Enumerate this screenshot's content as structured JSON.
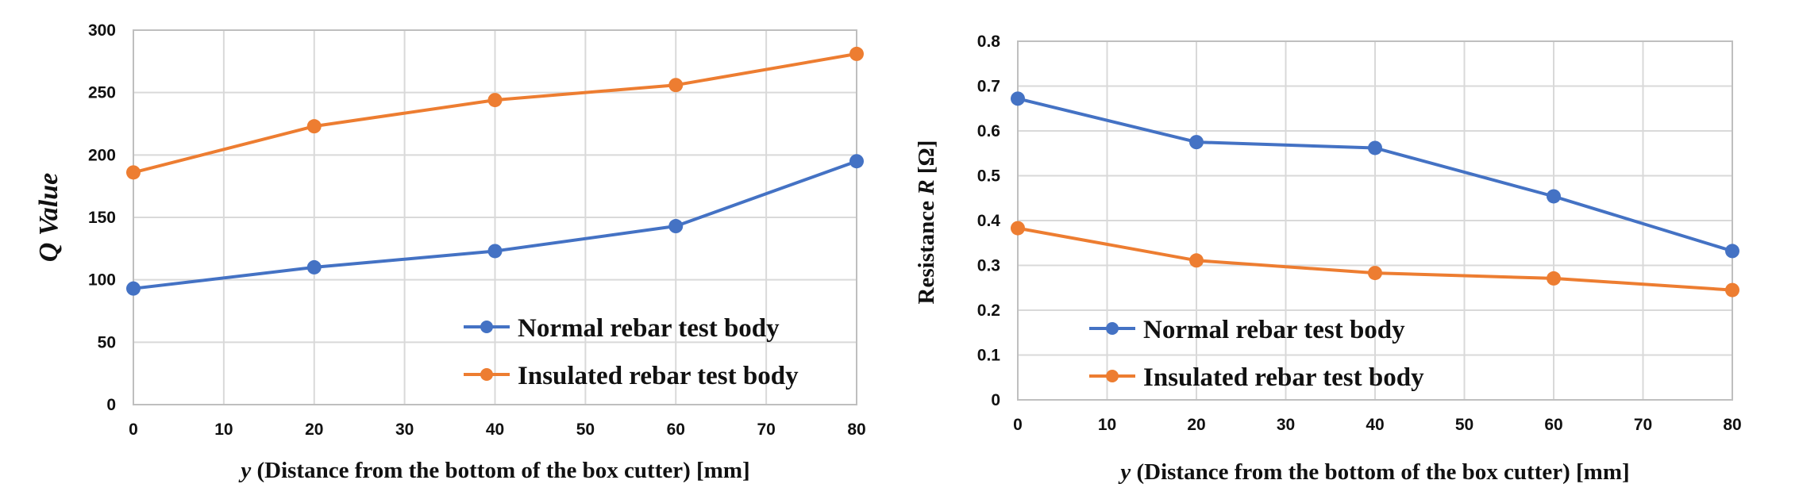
{
  "colors": {
    "normal": "#4472c4",
    "insulated": "#ed7d31"
  },
  "chart_data": [
    {
      "type": "line",
      "x": [
        0,
        20,
        40,
        60,
        80
      ],
      "xticks": [
        0,
        10,
        20,
        30,
        40,
        50,
        60,
        70,
        80
      ],
      "xlim": [
        0,
        80
      ],
      "yticks": [
        0,
        50,
        100,
        150,
        200,
        250,
        300
      ],
      "ylim": [
        0,
        300
      ],
      "xlabel": {
        "var": "y",
        "rest": " (Distance from the bottom of the box cutter) [mm]"
      },
      "ylabel": "Q Value",
      "grid": true,
      "legend_position": "bottom-right",
      "series": [
        {
          "name": "Normal rebar test body",
          "color": "#4472c4",
          "values": [
            93,
            110,
            123,
            143,
            195
          ]
        },
        {
          "name": "Insulated rebar test body",
          "color": "#ed7d31",
          "values": [
            186,
            223,
            244,
            256,
            281
          ]
        }
      ]
    },
    {
      "type": "line",
      "x": [
        0,
        20,
        40,
        60,
        80
      ],
      "xticks": [
        0,
        10,
        20,
        30,
        40,
        50,
        60,
        70,
        80
      ],
      "xlim": [
        0,
        80
      ],
      "yticks": [
        "0",
        "0.1",
        "0.2",
        "0.3",
        "0.4",
        "0.5",
        "0.6",
        "0.7",
        "0.8"
      ],
      "ylim": [
        0,
        0.8
      ],
      "xlabel": {
        "var": "y",
        "rest": " (Distance from the bottom of the box cutter) [mm]"
      },
      "ylabel": {
        "pre": "Resistance ",
        "var": "R",
        "post": " [Ω]"
      },
      "grid": true,
      "legend_position": "bottom-left",
      "series": [
        {
          "name": "Normal rebar test body",
          "color": "#4472c4",
          "values": [
            0.672,
            0.575,
            0.562,
            0.454,
            0.332
          ]
        },
        {
          "name": "Insulated rebar test body",
          "color": "#ed7d31",
          "values": [
            0.383,
            0.311,
            0.283,
            0.271,
            0.245
          ]
        }
      ]
    }
  ]
}
